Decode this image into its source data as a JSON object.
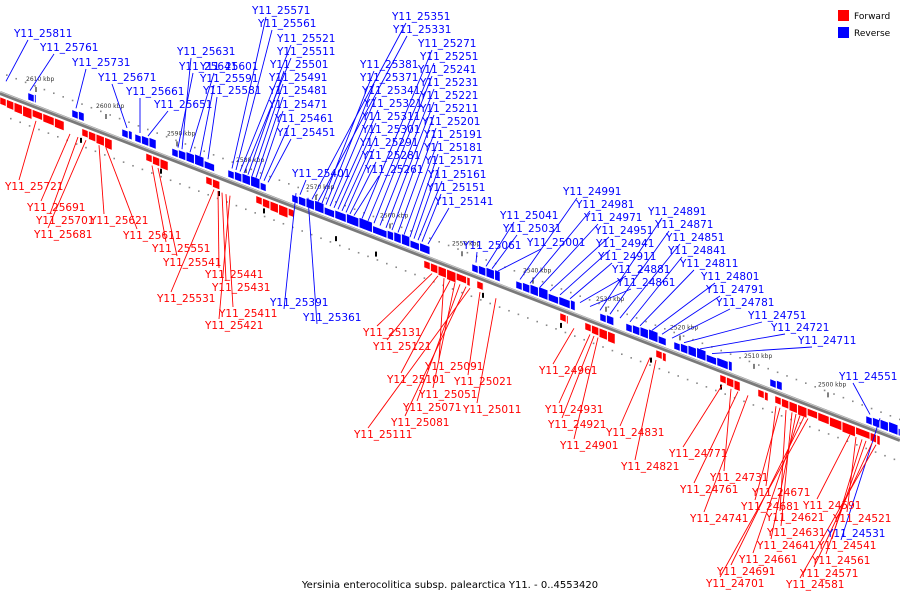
{
  "caption": "Yersinia enterocolitica subsp. palearctica Y11. - 0..4553420",
  "legend": {
    "forward": {
      "label": "Forward",
      "color": "#ff0000"
    },
    "reverse": {
      "label": "Reverse",
      "color": "#0000ff"
    }
  },
  "axis": {
    "kbp_ticks": [
      "2610 kbp",
      "2600 kbp",
      "2590 kbp",
      "2580 kbp",
      "2570 kbp",
      "2560 kbp",
      "2550 kbp",
      "2540 kbp",
      "2530 kbp",
      "2520 kbp",
      "2510 kbp",
      "2500 kbp"
    ]
  },
  "reverse_labels": [
    "Y11_25811",
    "Y11_25761",
    "Y11_25731",
    "Y11_25671",
    "Y11_25661",
    "Y11_25651",
    "Y11_25641",
    "Y11_25631",
    "Y11_25601",
    "Y11_25591",
    "Y11_25581",
    "Y11_25571",
    "Y11_25561",
    "Y11_25521",
    "Y11_25511",
    "Y11_25501",
    "Y11_25491",
    "Y11_25481",
    "Y11_25471",
    "Y11_25461",
    "Y11_25451",
    "Y11_25401",
    "Y11_25351",
    "Y11_25331",
    "Y11_25381",
    "Y11_25371",
    "Y11_25341",
    "Y11_25321",
    "Y11_25311",
    "Y11_25301",
    "Y11_25291",
    "Y11_25281",
    "Y11_25261",
    "Y11_25271",
    "Y11_25251",
    "Y11_25241",
    "Y11_25231",
    "Y11_25221",
    "Y11_25211",
    "Y11_25201",
    "Y11_25191",
    "Y11_25181",
    "Y11_25171",
    "Y11_25161",
    "Y11_25151",
    "Y11_25141",
    "Y11_25391",
    "Y11_25361",
    "Y11_25041",
    "Y11_25031",
    "Y11_25001",
    "Y11_25061",
    "Y11_24991",
    "Y11_24981",
    "Y11_24971",
    "Y11_24951",
    "Y11_24941",
    "Y11_24911",
    "Y11_24881",
    "Y11_24861",
    "Y11_24891",
    "Y11_24871",
    "Y11_24851",
    "Y11_24841",
    "Y11_24811",
    "Y11_24801",
    "Y11_24791",
    "Y11_24781",
    "Y11_24751",
    "Y11_24721",
    "Y11_24711",
    "Y11_24551",
    "Y11_24531"
  ],
  "forward_labels": [
    "Y11_25721",
    "Y11_25691",
    "Y11_25701",
    "Y11_25681",
    "Y11_25621",
    "Y11_25611",
    "Y11_25551",
    "Y11_25541",
    "Y11_25531",
    "Y11_25441",
    "Y11_25431",
    "Y11_25411",
    "Y11_25421",
    "Y11_25131",
    "Y11_25121",
    "Y11_25091",
    "Y11_25101",
    "Y11_25051",
    "Y11_25071",
    "Y11_25081",
    "Y11_25111",
    "Y11_25021",
    "Y11_25011",
    "Y11_24961",
    "Y11_24931",
    "Y11_24921",
    "Y11_24901",
    "Y11_24831",
    "Y11_24821",
    "Y11_24771",
    "Y11_24731",
    "Y11_24761",
    "Y11_24741",
    "Y11_24671",
    "Y11_24681",
    "Y11_24621",
    "Y11_24631",
    "Y11_24641",
    "Y11_24661",
    "Y11_24691",
    "Y11_24701",
    "Y11_24591",
    "Y11_24521",
    "Y11_24541",
    "Y11_24561",
    "Y11_24571",
    "Y11_24581"
  ]
}
